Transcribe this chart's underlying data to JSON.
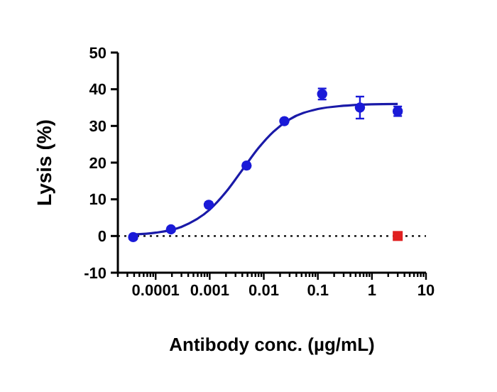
{
  "chart_data": {
    "type": "scatter",
    "xlabel": "Antibody conc. (µg/mL)",
    "ylabel": "Lysis (%)",
    "log": "x",
    "xlim": [
      2e-05,
      10
    ],
    "ylim": [
      -10,
      50
    ],
    "yticks": [
      -10,
      0,
      10,
      20,
      30,
      40,
      50
    ],
    "xticks": [
      {
        "value": 2e-05,
        "label": null
      },
      {
        "value": 3e-05,
        "label": null
      },
      {
        "value": 4e-05,
        "label": null
      },
      {
        "value": 5e-05,
        "label": null
      },
      {
        "value": 6e-05,
        "label": null
      },
      {
        "value": 7e-05,
        "label": null
      },
      {
        "value": 8e-05,
        "label": null
      },
      {
        "value": 9e-05,
        "label": null
      },
      0.0001,
      {
        "value": 0.0002,
        "label": null
      },
      {
        "value": 0.0003,
        "label": null
      },
      {
        "value": 0.0004,
        "label": null
      },
      {
        "value": 0.0005,
        "label": null
      },
      {
        "value": 0.0006,
        "label": null
      },
      {
        "value": 0.0007,
        "label": null
      },
      {
        "value": 0.0008,
        "label": null
      },
      {
        "value": 0.0009,
        "label": null
      },
      0.001,
      {
        "value": 0.002,
        "label": null
      },
      {
        "value": 0.003,
        "label": null
      },
      {
        "value": 0.004,
        "label": null
      },
      {
        "value": 0.005,
        "label": null
      },
      {
        "value": 0.006,
        "label": null
      },
      {
        "value": 0.007,
        "label": null
      },
      {
        "value": 0.008,
        "label": null
      },
      {
        "value": 0.009,
        "label": null
      },
      0.01,
      {
        "value": 0.02,
        "label": null
      },
      {
        "value": 0.03,
        "label": null
      },
      {
        "value": 0.04,
        "label": null
      },
      {
        "value": 0.05,
        "label": null
      },
      {
        "value": 0.06,
        "label": null
      },
      {
        "value": 0.07,
        "label": null
      },
      {
        "value": 0.08,
        "label": null
      },
      {
        "value": 0.09,
        "label": null
      },
      0.1,
      {
        "value": 0.2,
        "label": null
      },
      {
        "value": 0.3,
        "label": null
      },
      {
        "value": 0.4,
        "label": null
      },
      {
        "value": 0.5,
        "label": null
      },
      {
        "value": 0.6,
        "label": null
      },
      {
        "value": 0.7,
        "label": null
      },
      {
        "value": 0.8,
        "label": null
      },
      {
        "value": 0.9,
        "label": null
      },
      1,
      {
        "value": 2,
        "label": null
      },
      {
        "value": 3,
        "label": null
      },
      {
        "value": 4,
        "label": null
      },
      {
        "value": 5,
        "label": null
      },
      {
        "value": 6,
        "label": null
      },
      {
        "value": 7,
        "label": null
      },
      {
        "value": 8,
        "label": null
      },
      {
        "value": 9,
        "label": null
      },
      10
    ],
    "series": [
      {
        "marker": "circle",
        "color": "#1a1ad8",
        "x": [
          3.84e-05,
          0.000192,
          0.00096,
          0.0048,
          0.024,
          0.12,
          0.6,
          3
        ],
        "values": [
          -0.3,
          1.8,
          8.5,
          19.2,
          31.3,
          38.7,
          35,
          34
        ],
        "errors": [
          null,
          null,
          null,
          null,
          null,
          1.5,
          3,
          1.3
        ]
      },
      {
        "marker": "square",
        "color": "#e02020",
        "x": [
          3
        ],
        "values": [
          0
        ]
      },
      {
        "type": "line",
        "color": "#1a1aa8",
        "x": [
          3.84e-05,
          0.0001,
          0.0003,
          0.001,
          0.002,
          0.004,
          0.008,
          0.015,
          0.03,
          0.1,
          0.3,
          1,
          3
        ],
        "values": [
          0.4,
          0.9,
          2.5,
          7.2,
          12,
          18,
          24,
          28.4,
          31.8,
          34.6,
          35.5,
          35.9,
          36
        ]
      }
    ],
    "ref_lines": [
      {
        "axis": "y",
        "value": 0,
        "line_style": "dotted",
        "color": "#000000"
      }
    ]
  }
}
